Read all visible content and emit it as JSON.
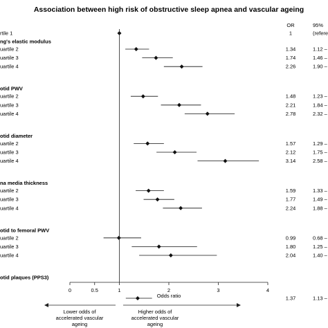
{
  "chart_data": {
    "type": "forest",
    "title": "Association between high risk of obstructive sleep apnea and vascular ageing",
    "col_or_header": "OR",
    "col_ci_header": "95%",
    "xlabel": "Odds ratio",
    "xticks": [
      0,
      0.5,
      1,
      2,
      3,
      4
    ],
    "xlim": [
      0,
      4
    ],
    "reference_line": 1,
    "left_arrow_label": "Lower odds of accelerated vascular ageing",
    "right_arrow_label": "Higher odds of accelerated vascular ageing",
    "reference_row": {
      "label": "rtile 1",
      "or_text": "1",
      "ci_text": "(refere",
      "or": 1
    },
    "groups": [
      {
        "name": "ng's elastic modulus",
        "rows": [
          {
            "label": "uartile 2",
            "or": 1.34,
            "lo": 1.12,
            "hi": 1.6,
            "or_text": "1.34",
            "ci_text": "1.12 –"
          },
          {
            "label": "uartile 3",
            "or": 1.74,
            "lo": 1.46,
            "hi": 2.08,
            "or_text": "1.74",
            "ci_text": "1.46 –"
          },
          {
            "label": "uartile 4",
            "or": 2.26,
            "lo": 1.9,
            "hi": 2.68,
            "or_text": "2.26",
            "ci_text": "1.90 –"
          }
        ]
      },
      {
        "name": "otid PWV",
        "rows": [
          {
            "label": "uartile 2",
            "or": 1.48,
            "lo": 1.23,
            "hi": 1.78,
            "or_text": "1.48",
            "ci_text": "1.23 –"
          },
          {
            "label": "uartile 3",
            "or": 2.21,
            "lo": 1.84,
            "hi": 2.65,
            "or_text": "2.21",
            "ci_text": "1.84 –"
          },
          {
            "label": "uartile 4",
            "or": 2.78,
            "lo": 2.32,
            "hi": 3.33,
            "or_text": "2.78",
            "ci_text": "2.32 –"
          }
        ]
      },
      {
        "name": "otid diameter",
        "rows": [
          {
            "label": "uartile 2",
            "or": 1.57,
            "lo": 1.29,
            "hi": 1.9,
            "or_text": "1.57",
            "ci_text": "1.29 –"
          },
          {
            "label": "uartile 3",
            "or": 2.12,
            "lo": 1.75,
            "hi": 2.56,
            "or_text": "2.12",
            "ci_text": "1.75 –"
          },
          {
            "label": "uartile 4",
            "or": 3.14,
            "lo": 2.58,
            "hi": 3.82,
            "or_text": "3.14",
            "ci_text": "2.58 –"
          }
        ]
      },
      {
        "name": "na media thickness",
        "rows": [
          {
            "label": "uartile 2",
            "or": 1.59,
            "lo": 1.33,
            "hi": 1.9,
            "or_text": "1.59",
            "ci_text": "1.33 –"
          },
          {
            "label": "uartile 3",
            "or": 1.77,
            "lo": 1.49,
            "hi": 2.11,
            "or_text": "1.77",
            "ci_text": "1.49 –"
          },
          {
            "label": "uartile 4",
            "or": 2.24,
            "lo": 1.88,
            "hi": 2.67,
            "or_text": "2.24",
            "ci_text": "1.88 –"
          }
        ]
      },
      {
        "name": "otid to femoral PWV",
        "rows": [
          {
            "label": "uartile 2",
            "or": 0.99,
            "lo": 0.68,
            "hi": 1.44,
            "or_text": "0.99",
            "ci_text": "0.68 –"
          },
          {
            "label": "uartile 3",
            "or": 1.8,
            "lo": 1.25,
            "hi": 2.57,
            "or_text": "1.80",
            "ci_text": "1.25 –"
          },
          {
            "label": "uartile 4",
            "or": 2.04,
            "lo": 1.4,
            "hi": 2.97,
            "or_text": "2.04",
            "ci_text": "1.40 –"
          }
        ]
      },
      {
        "name": "otid plaques (PPS3)",
        "rows": [
          {
            "label": "",
            "or": 1.37,
            "lo": 1.13,
            "hi": 1.66,
            "or_text": "1.37",
            "ci_text": "1.13 –"
          }
        ]
      }
    ]
  }
}
